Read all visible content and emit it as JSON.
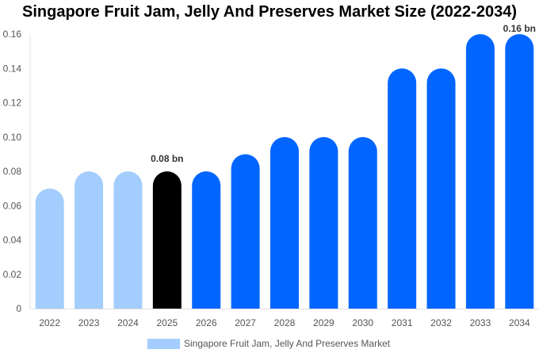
{
  "chart_data": {
    "type": "bar",
    "title": "Singapore Fruit Jam, Jelly And Preserves Market Size (2022-2034)",
    "categories": [
      "2022",
      "2023",
      "2024",
      "2025",
      "2026",
      "2027",
      "2028",
      "2029",
      "2030",
      "2031",
      "2032",
      "2033",
      "2034"
    ],
    "series": [
      {
        "name": "Singapore Fruit Jam, Jelly And Preserves Market",
        "values": [
          0.07,
          0.08,
          0.08,
          0.08,
          0.08,
          0.09,
          0.1,
          0.1,
          0.1,
          0.14,
          0.14,
          0.16,
          0.16
        ]
      }
    ],
    "bar_colors": [
      "#a3cdfd",
      "#a3cdfd",
      "#a3cdfd",
      "#000000",
      "#0066ff",
      "#0066ff",
      "#0066ff",
      "#0066ff",
      "#0066ff",
      "#0066ff",
      "#0066ff",
      "#0066ff",
      "#0066ff"
    ],
    "data_labels": [
      {
        "index": 3,
        "text": "0.08 bn"
      },
      {
        "index": 12,
        "text": "0.16 bn"
      }
    ],
    "yticks": [
      "0",
      "0.02",
      "0.04",
      "0.06",
      "0.08",
      "0.10",
      "0.12",
      "0.14",
      "0.16"
    ],
    "ylim": [
      0,
      0.16
    ],
    "xlabel": "",
    "ylabel": "",
    "grid": false,
    "legend_position": "bottom",
    "legend_color": "#a3cdfd"
  }
}
